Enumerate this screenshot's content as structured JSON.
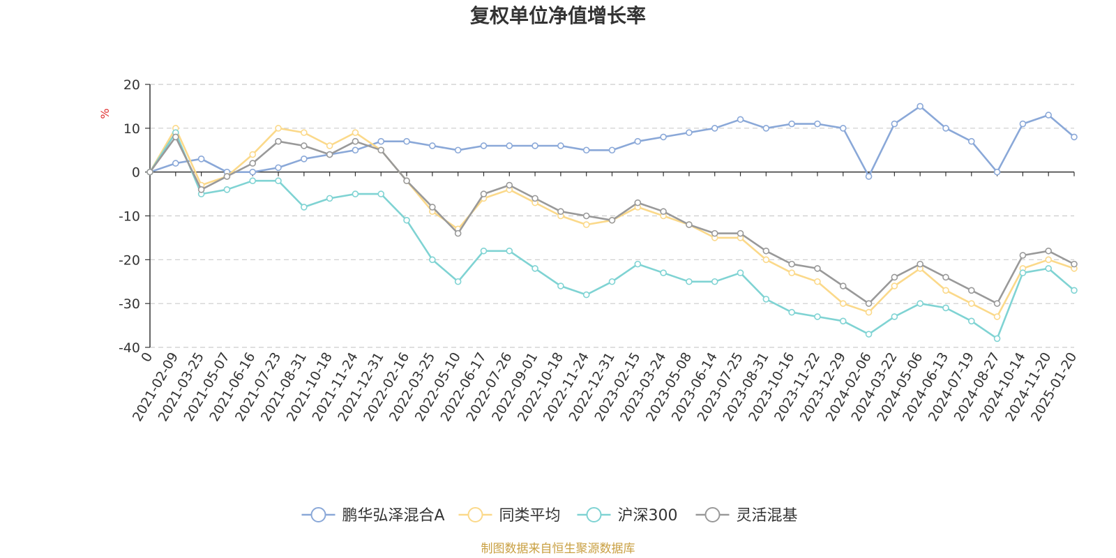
{
  "chart_data": {
    "type": "line",
    "title": "复权单位净值增长率",
    "ylabel": "%",
    "ylim": [
      -40,
      20
    ],
    "yticks": [
      20,
      10,
      0,
      -10,
      -20,
      -30,
      -40
    ],
    "xlabels": [
      "0",
      "2021-02-09",
      "2021-03-25",
      "2021-05-07",
      "2021-06-16",
      "2021-07-23",
      "2021-08-31",
      "2021-10-18",
      "2021-11-24",
      "2021-12-31",
      "2022-02-16",
      "2022-03-25",
      "2022-05-10",
      "2022-06-17",
      "2022-07-26",
      "2022-09-01",
      "2022-10-18",
      "2022-11-24",
      "2022-12-31",
      "2023-02-15",
      "2023-03-24",
      "2023-05-08",
      "2023-06-14",
      "2023-07-25",
      "2023-08-31",
      "2023-10-16",
      "2023-11-22",
      "2023-12-29",
      "2024-02-06",
      "2024-03-22",
      "2024-05-06",
      "2024-06-13",
      "2024-07-19",
      "2024-08-27",
      "2024-10-14",
      "2024-11-20",
      "2025-01-20"
    ],
    "series": [
      {
        "name": "鹏华弘泽混合A",
        "color": "#8aa8d8",
        "values": [
          0,
          2,
          3,
          0,
          0,
          1,
          3,
          4,
          5,
          7,
          7,
          6,
          5,
          6,
          6,
          6,
          6,
          5,
          5,
          7,
          8,
          9,
          10,
          12,
          10,
          11,
          11,
          10,
          -1,
          11,
          15,
          10,
          7,
          0,
          11,
          13,
          8
        ]
      },
      {
        "name": "同类平均",
        "color": "#fbd98a",
        "values": [
          0,
          10,
          -3,
          -1,
          4,
          10,
          9,
          6,
          9,
          5,
          -2,
          -9,
          -13,
          -6,
          -4,
          -7,
          -10,
          -12,
          -11,
          -8,
          -10,
          -12,
          -15,
          -15,
          -20,
          -23,
          -25,
          -30,
          -32,
          -26,
          -22,
          -27,
          -30,
          -33,
          -22,
          -20,
          -22
        ]
      },
      {
        "name": "沪深300",
        "color": "#7fd3d3",
        "values": [
          0,
          9,
          -5,
          -4,
          -2,
          -2,
          -8,
          -6,
          -5,
          -5,
          -11,
          -20,
          -25,
          -18,
          -18,
          -22,
          -26,
          -28,
          -25,
          -21,
          -23,
          -25,
          -25,
          -23,
          -29,
          -32,
          -33,
          -34,
          -37,
          -33,
          -30,
          -31,
          -34,
          -38,
          -23,
          -22,
          -27
        ]
      },
      {
        "name": "灵活混基",
        "color": "#999999",
        "values": [
          0,
          8,
          -4,
          -1,
          2,
          7,
          6,
          4,
          7,
          5,
          -2,
          -8,
          -14,
          -5,
          -3,
          -6,
          -9,
          -10,
          -11,
          -7,
          -9,
          -12,
          -14,
          -14,
          -18,
          -21,
          -22,
          -26,
          -30,
          -24,
          -21,
          -24,
          -27,
          -30,
          -19,
          -18,
          -21
        ]
      }
    ]
  },
  "footer": {
    "source": "制图数据来自恒生聚源数据库"
  }
}
